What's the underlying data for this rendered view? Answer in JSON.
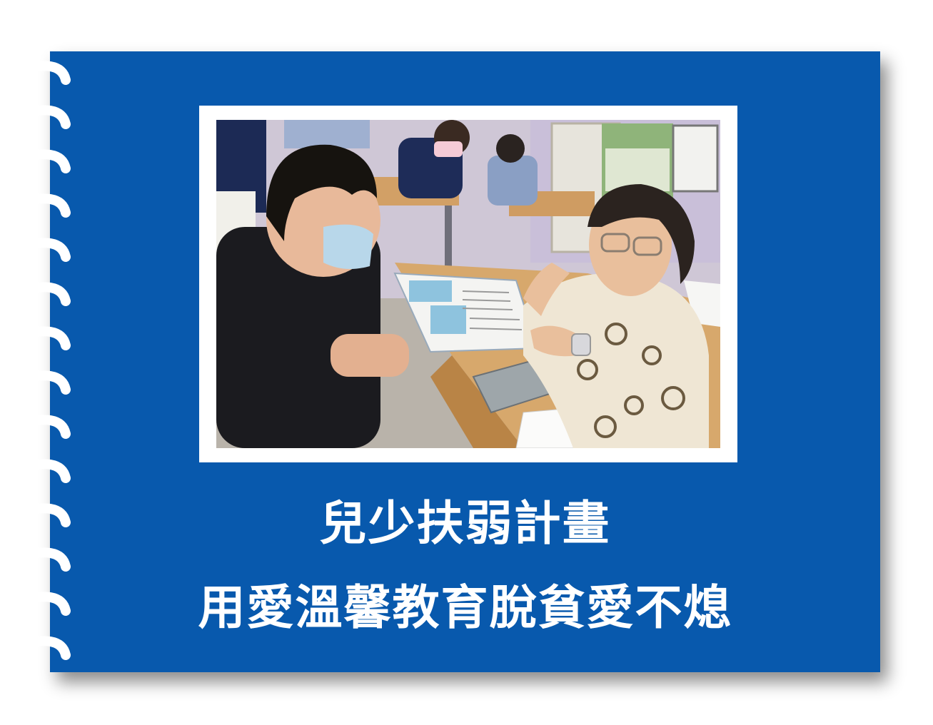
{
  "card": {
    "background_color": "#0859ad",
    "text_color": "#ffffff"
  },
  "photo": {
    "description_icon": "photo-classroom-tutoring"
  },
  "title": {
    "line1": "兒少扶弱計畫",
    "line2": "用愛溫馨教育脫貧愛不熄"
  }
}
